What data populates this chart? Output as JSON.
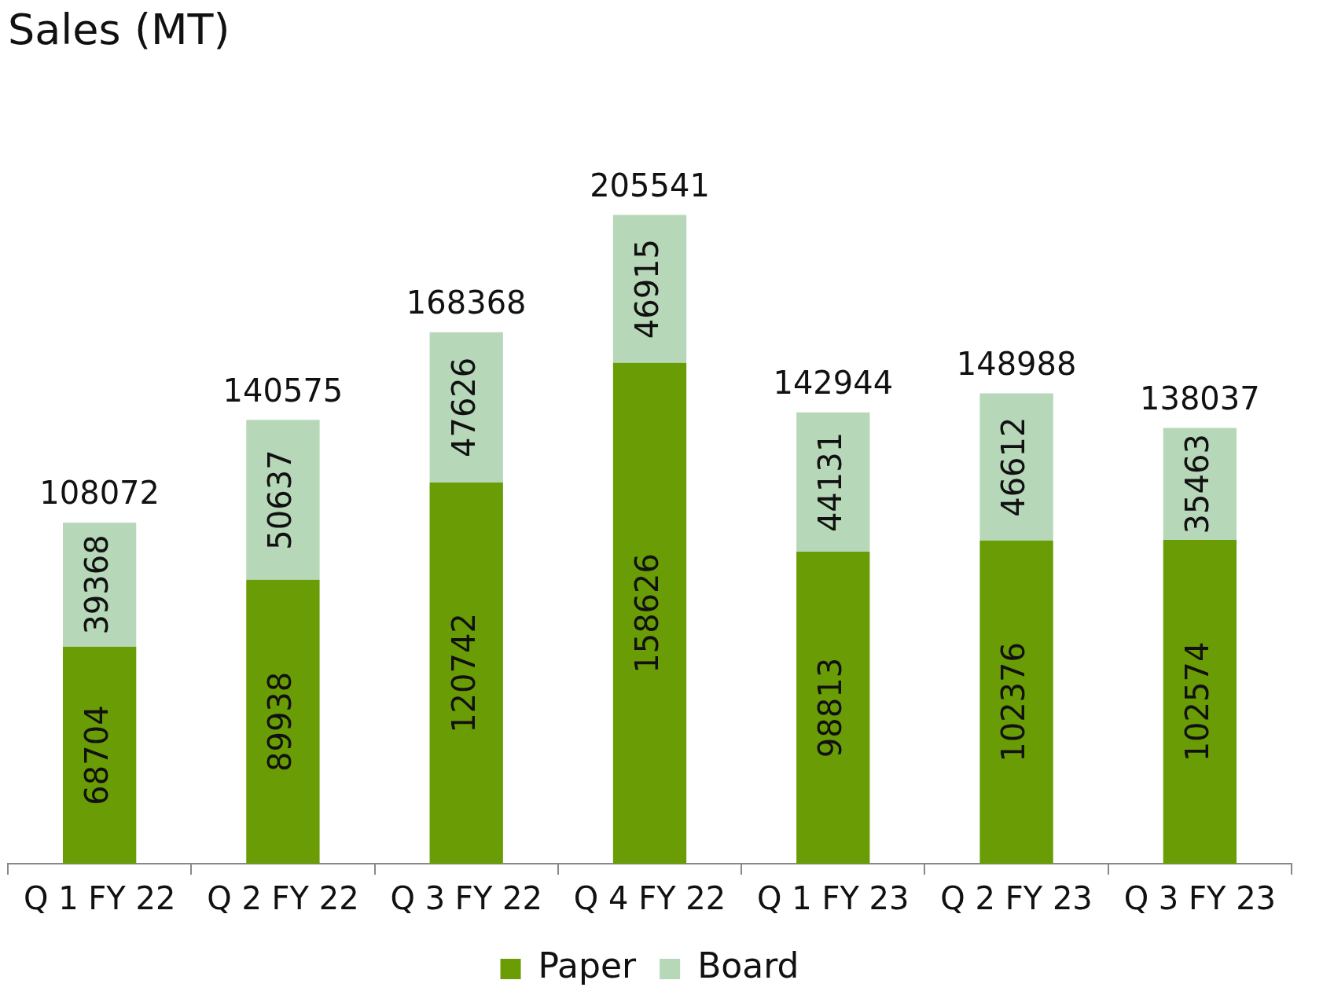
{
  "chart_data": {
    "type": "bar",
    "title": "Sales (MT)",
    "stacked": true,
    "categories": [
      "Q 1 FY 22",
      "Q 2 FY 22",
      "Q 3 FY 22",
      "Q 4 FY 22",
      "Q 1 FY 23",
      "Q 2 FY 23",
      "Q 3 FY 23"
    ],
    "series": [
      {
        "name": "Paper",
        "color": "#6a9c06",
        "values": [
          68704,
          89938,
          120742,
          158626,
          98813,
          102376,
          102574
        ]
      },
      {
        "name": "Board",
        "color": "#b7d7b9",
        "values": [
          39368,
          50637,
          47626,
          46915,
          44131,
          46612,
          35463
        ]
      }
    ],
    "totals": [
      "108072",
      "140575",
      "168368",
      "205541",
      "142944",
      "148988",
      "138037"
    ],
    "data_labels": true,
    "legend": "bottom",
    "grid": false
  }
}
